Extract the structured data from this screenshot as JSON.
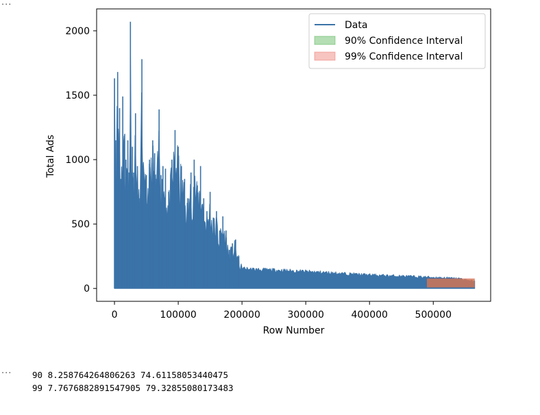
{
  "notebook": {
    "cell_marker": "···",
    "output_marker": "···",
    "output_lines": [
      "90 8.258764264806263 74.61158053440475",
      "99 7.7676882891547905 79.32855080173483"
    ]
  },
  "colors": {
    "data": "#3a73a8",
    "ci90_fill": "#2ca02c",
    "ci99_fill": "#e8564a",
    "overlap": "#d07a55"
  },
  "chart_data": {
    "type": "area",
    "xlabel": "Row Number",
    "ylabel": "Total Ads",
    "xlim": [
      -28000,
      590000
    ],
    "ylim": [
      -100,
      2170
    ],
    "xticks": [
      0,
      100000,
      200000,
      300000,
      400000,
      500000
    ],
    "xtick_labels": [
      "0",
      "100000",
      "200000",
      "300000",
      "400000",
      "500000"
    ],
    "yticks": [
      0,
      500,
      1000,
      1500,
      2000
    ],
    "ytick_labels": [
      "0",
      "500",
      "1000",
      "1500",
      "2000"
    ],
    "legend_position": "upper right",
    "series": [
      {
        "name": "Data",
        "kind": "line",
        "envelope_x": [
          0,
          2000,
          5000,
          8000,
          10000,
          13000,
          16000,
          18000,
          21000,
          23000,
          25000,
          28000,
          30000,
          33000,
          36000,
          40000,
          43000,
          46000,
          50000,
          55000,
          60000,
          63000,
          66000,
          70000,
          73000,
          76000,
          80000,
          85000,
          90000,
          95000,
          100000,
          105000,
          110000,
          115000,
          120000,
          125000,
          130000,
          135000,
          140000,
          145000,
          150000,
          155000,
          160000,
          165000,
          170000,
          175000,
          180000,
          185000,
          190000,
          195000,
          200000,
          210000,
          230000,
          260000,
          300000,
          350000,
          400000,
          450000,
          500000,
          540000,
          565000
        ],
        "envelope_y": [
          1630,
          1150,
          1680,
          1400,
          850,
          1490,
          1200,
          1000,
          1150,
          900,
          2070,
          1100,
          900,
          1360,
          950,
          700,
          1780,
          900,
          880,
          1000,
          1150,
          1050,
          850,
          1390,
          880,
          950,
          930,
          750,
          1000,
          1230,
          1100,
          950,
          850,
          700,
          900,
          1000,
          800,
          950,
          700,
          600,
          750,
          550,
          600,
          450,
          560,
          450,
          300,
          350,
          380,
          250,
          175,
          165,
          160,
          155,
          145,
          130,
          115,
          105,
          95,
          85,
          60
        ]
      },
      {
        "name": "90% Confidence Interval",
        "kind": "band",
        "x_range": [
          490000,
          565000
        ],
        "lower": 8.258764264806263,
        "upper": 74.61158053440475
      },
      {
        "name": "99% Confidence Interval",
        "kind": "band",
        "x_range": [
          490000,
          565000
        ],
        "lower": 7.7676882891547905,
        "upper": 79.32855080173483
      }
    ]
  }
}
